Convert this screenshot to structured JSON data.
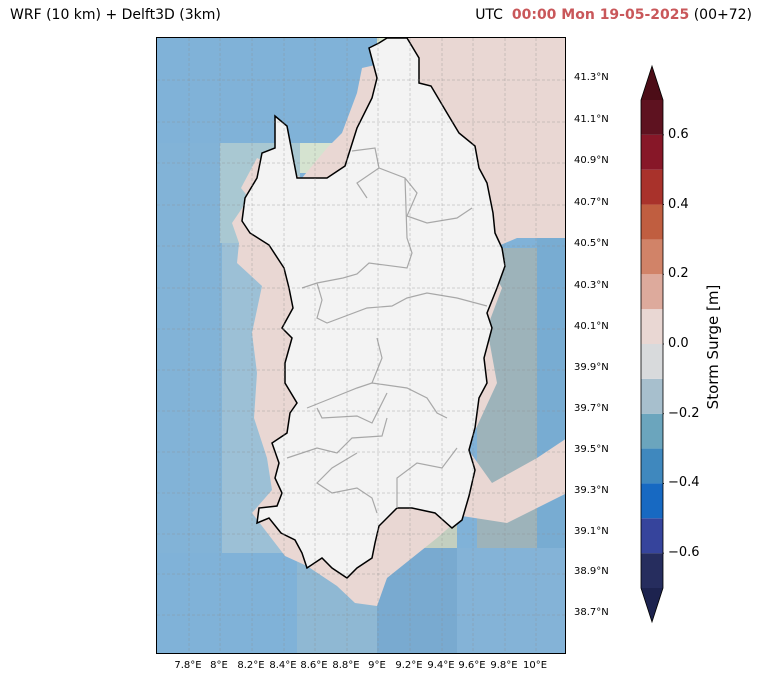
{
  "header": {
    "left_title": "WRF (10 km) + Delft3D (3km)",
    "utc_label": "UTC",
    "datetime": "00:00 Mon 19-05-2025",
    "lead": "(00+72)"
  },
  "map": {
    "region": "Sardinia",
    "lat_ticks": [
      "41.3°N",
      "41.1°N",
      "40.9°N",
      "40.7°N",
      "40.5°N",
      "40.3°N",
      "40.1°N",
      "39.9°N",
      "39.7°N",
      "39.5°N",
      "39.3°N",
      "39.1°N",
      "38.9°N",
      "38.7°N"
    ],
    "lon_ticks": [
      "7.8°E",
      "8°E",
      "8.2°E",
      "8.4°E",
      "8.6°E",
      "8.8°E",
      "9°E",
      "9.2°E",
      "9.4°E",
      "9.6°E",
      "9.8°E",
      "10°E"
    ],
    "grid": true
  },
  "colorbar": {
    "label": "Storm Surge [m]",
    "ticks": [
      "0.6",
      "0.4",
      "0.2",
      "0.0",
      "−0.2",
      "−0.4",
      "−0.6"
    ],
    "levels": [
      -0.7,
      -0.6,
      -0.5,
      -0.4,
      -0.3,
      -0.2,
      -0.1,
      0,
      0.1,
      0.2,
      0.3,
      0.4,
      0.5,
      0.6,
      0.7
    ],
    "colors": [
      "#262d5e",
      "#36449c",
      "#1769c2",
      "#3f88be",
      "#6ba5bd",
      "#a7bfcd",
      "#d8dadc",
      "#e9d7d3",
      "#ddaa9c",
      "#d18368",
      "#c05e40",
      "#a9322b",
      "#871728",
      "#5e1220"
    ],
    "extend_low": "#1d234f",
    "extend_high": "#4c0d17"
  }
}
